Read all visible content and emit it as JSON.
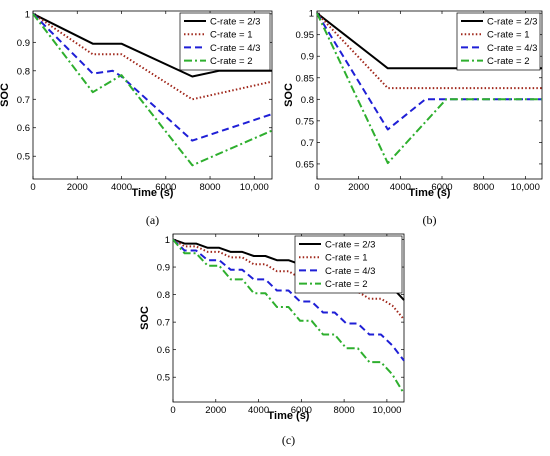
{
  "chart_data": [
    {
      "type": "line",
      "panel_label": "(a)",
      "xlabel": "Time (s)",
      "ylabel": "SOC",
      "xlim": [
        0,
        10800
      ],
      "ylim": [
        0.42,
        1.01
      ],
      "x_ticks": [
        0,
        2000,
        4000,
        6000,
        8000,
        10000
      ],
      "x_tick_labels": [
        "0",
        "2000",
        "4000",
        "6000",
        "8000",
        "10,000"
      ],
      "y_ticks": [
        0.5,
        0.6,
        0.7,
        0.8,
        0.9,
        1.0
      ],
      "y_tick_labels": [
        "0.5",
        "0.6",
        "0.7",
        "0.8",
        "0.9",
        "1"
      ],
      "legend_position": "top-right",
      "grid": false,
      "series": [
        {
          "name": "C-rate = 2/3",
          "color": "#000000",
          "style": "solid",
          "points": [
            [
              0,
              1.0
            ],
            [
              2700,
              0.895
            ],
            [
              4000,
              0.895
            ],
            [
              7200,
              0.78
            ],
            [
              8400,
              0.8
            ],
            [
              10800,
              0.8
            ]
          ]
        },
        {
          "name": "C-rate = 1",
          "color": "#a0281c",
          "style": "dotted",
          "points": [
            [
              0,
              1.0
            ],
            [
              2700,
              0.858
            ],
            [
              4000,
              0.858
            ],
            [
              7200,
              0.7
            ],
            [
              10800,
              0.762
            ]
          ]
        },
        {
          "name": "C-rate = 4/3",
          "color": "#1f1fd6",
          "style": "dashed",
          "points": [
            [
              0,
              1.0
            ],
            [
              2700,
              0.79
            ],
            [
              3600,
              0.8
            ],
            [
              4000,
              0.78
            ],
            [
              7200,
              0.555
            ],
            [
              10800,
              0.648
            ]
          ]
        },
        {
          "name": "C-rate = 2",
          "color": "#2eaf2e",
          "style": "dashdot",
          "points": [
            [
              0,
              1.0
            ],
            [
              2700,
              0.725
            ],
            [
              4000,
              0.785
            ],
            [
              7200,
              0.468
            ],
            [
              10800,
              0.59
            ]
          ]
        }
      ]
    },
    {
      "type": "line",
      "panel_label": "(b)",
      "xlabel": "Time (s)",
      "ylabel": "SOC",
      "xlim": [
        0,
        10800
      ],
      "ylim": [
        0.615,
        1.005
      ],
      "x_ticks": [
        0,
        2000,
        4000,
        6000,
        8000,
        10000
      ],
      "x_tick_labels": [
        "0",
        "2000",
        "4000",
        "6000",
        "8000",
        "10,000"
      ],
      "y_ticks": [
        0.65,
        0.7,
        0.75,
        0.8,
        0.85,
        0.9,
        0.95,
        1.0
      ],
      "y_tick_labels": [
        "0.65",
        "0.7",
        "0.75",
        "0.8",
        "0.85",
        "0.9",
        "0.95",
        "1"
      ],
      "legend_position": "top-right",
      "grid": false,
      "series": [
        {
          "name": "C-rate = 2/3",
          "color": "#000000",
          "style": "solid",
          "points": [
            [
              0,
              1.0
            ],
            [
              3400,
              0.872
            ],
            [
              10800,
              0.872
            ]
          ]
        },
        {
          "name": "C-rate = 1",
          "color": "#a0281c",
          "style": "dotted",
          "points": [
            [
              0,
              1.0
            ],
            [
              3400,
              0.826
            ],
            [
              10800,
              0.826
            ]
          ]
        },
        {
          "name": "C-rate = 4/3",
          "color": "#1f1fd6",
          "style": "dashed",
          "points": [
            [
              0,
              1.0
            ],
            [
              3400,
              0.73
            ],
            [
              5200,
              0.8
            ],
            [
              10800,
              0.8
            ]
          ]
        },
        {
          "name": "C-rate = 2",
          "color": "#2eaf2e",
          "style": "dashdot",
          "points": [
            [
              0,
              1.0
            ],
            [
              3400,
              0.652
            ],
            [
              6200,
              0.8
            ],
            [
              10800,
              0.8
            ]
          ]
        }
      ]
    },
    {
      "type": "line",
      "panel_label": "(c)",
      "xlabel": "Time (s)",
      "ylabel": "SOC",
      "xlim": [
        0,
        10800
      ],
      "ylim": [
        0.41,
        1.02
      ],
      "x_ticks": [
        0,
        2000,
        4000,
        6000,
        8000,
        10000
      ],
      "x_tick_labels": [
        "0",
        "2000",
        "4000",
        "6000",
        "8000",
        "10,000"
      ],
      "y_ticks": [
        0.5,
        0.6,
        0.7,
        0.8,
        0.9,
        1.0
      ],
      "y_tick_labels": [
        "0.5",
        "0.6",
        "0.7",
        "0.8",
        "0.9",
        "1"
      ],
      "legend_position": "top-right",
      "grid": false,
      "series": [
        {
          "name": "C-rate = 2/3",
          "color": "#000000",
          "style": "solid",
          "points": [
            [
              0,
              1.0
            ],
            [
              540,
              0.985
            ],
            [
              1080,
              0.985
            ],
            [
              1620,
              0.97
            ],
            [
              2160,
              0.97
            ],
            [
              2700,
              0.955
            ],
            [
              3240,
              0.955
            ],
            [
              3780,
              0.94
            ],
            [
              4320,
              0.94
            ],
            [
              4860,
              0.925
            ],
            [
              5400,
              0.925
            ],
            [
              5940,
              0.91
            ],
            [
              6480,
              0.91
            ],
            [
              7020,
              0.895
            ],
            [
              7560,
              0.895
            ],
            [
              8100,
              0.875
            ],
            [
              8640,
              0.875
            ],
            [
              9180,
              0.855
            ],
            [
              9720,
              0.855
            ],
            [
              10260,
              0.825
            ],
            [
              10800,
              0.78
            ]
          ]
        },
        {
          "name": "C-rate = 1",
          "color": "#a0281c",
          "style": "dotted",
          "points": [
            [
              0,
              1.0
            ],
            [
              540,
              0.975
            ],
            [
              1080,
              0.975
            ],
            [
              1620,
              0.955
            ],
            [
              2160,
              0.955
            ],
            [
              2700,
              0.935
            ],
            [
              3240,
              0.935
            ],
            [
              3780,
              0.91
            ],
            [
              4320,
              0.91
            ],
            [
              4860,
              0.885
            ],
            [
              5400,
              0.885
            ],
            [
              5940,
              0.86
            ],
            [
              6480,
              0.86
            ],
            [
              7020,
              0.835
            ],
            [
              7560,
              0.835
            ],
            [
              8100,
              0.81
            ],
            [
              8640,
              0.81
            ],
            [
              9180,
              0.785
            ],
            [
              9720,
              0.785
            ],
            [
              10260,
              0.76
            ],
            [
              10800,
              0.71
            ]
          ]
        },
        {
          "name": "C-rate = 4/3",
          "color": "#1f1fd6",
          "style": "dashed",
          "points": [
            [
              0,
              1.0
            ],
            [
              540,
              0.96
            ],
            [
              1080,
              0.96
            ],
            [
              1620,
              0.925
            ],
            [
              2160,
              0.925
            ],
            [
              2700,
              0.89
            ],
            [
              3240,
              0.89
            ],
            [
              3780,
              0.855
            ],
            [
              4320,
              0.855
            ],
            [
              4860,
              0.815
            ],
            [
              5400,
              0.815
            ],
            [
              5940,
              0.775
            ],
            [
              6480,
              0.775
            ],
            [
              7020,
              0.735
            ],
            [
              7560,
              0.735
            ],
            [
              8100,
              0.695
            ],
            [
              8640,
              0.695
            ],
            [
              9180,
              0.655
            ],
            [
              9720,
              0.655
            ],
            [
              10260,
              0.615
            ],
            [
              10800,
              0.56
            ]
          ]
        },
        {
          "name": "C-rate = 2",
          "color": "#2eaf2e",
          "style": "dashdot",
          "points": [
            [
              0,
              1.0
            ],
            [
              540,
              0.95
            ],
            [
              1080,
              0.95
            ],
            [
              1620,
              0.905
            ],
            [
              2160,
              0.905
            ],
            [
              2700,
              0.855
            ],
            [
              3240,
              0.855
            ],
            [
              3780,
              0.805
            ],
            [
              4320,
              0.805
            ],
            [
              4860,
              0.755
            ],
            [
              5400,
              0.755
            ],
            [
              5940,
              0.705
            ],
            [
              6480,
              0.705
            ],
            [
              7020,
              0.655
            ],
            [
              7560,
              0.655
            ],
            [
              8100,
              0.605
            ],
            [
              8640,
              0.605
            ],
            [
              9180,
              0.555
            ],
            [
              9720,
              0.555
            ],
            [
              10260,
              0.51
            ],
            [
              10800,
              0.44
            ]
          ]
        }
      ]
    }
  ]
}
